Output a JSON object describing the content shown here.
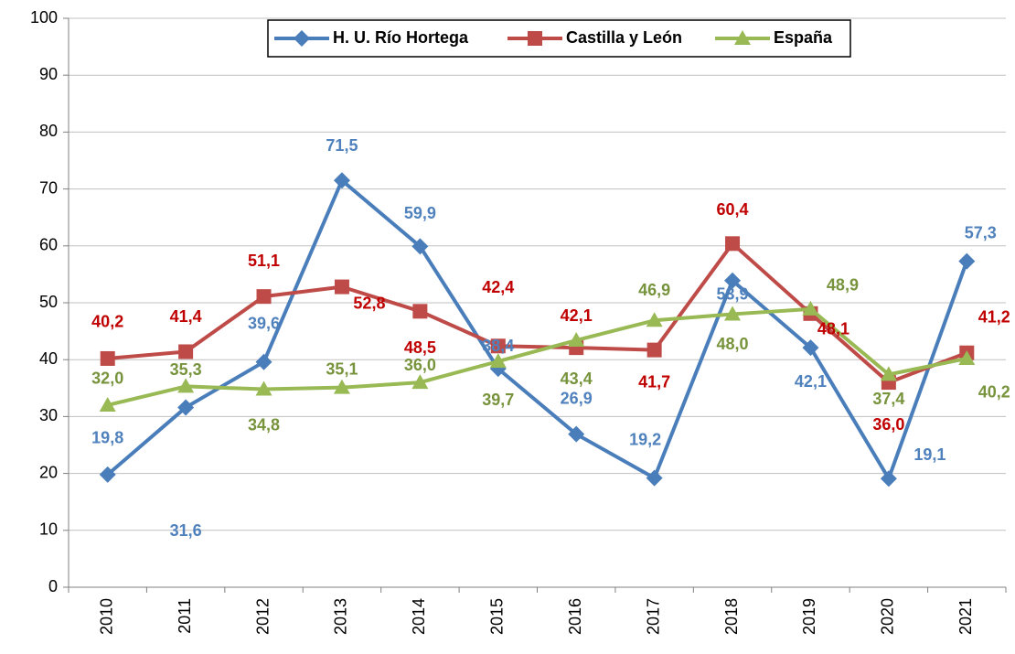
{
  "chart_data": {
    "type": "line",
    "categories": [
      "2010",
      "2011",
      "2012",
      "2013",
      "2014",
      "2015",
      "2016",
      "2017",
      "2018",
      "2019",
      "2020",
      "2021"
    ],
    "series": [
      {
        "name": "H. U. Río Hortega",
        "color": "#4a7ebb",
        "marker": "diamond",
        "values": [
          19.8,
          31.6,
          39.6,
          71.5,
          59.9,
          38.4,
          26.9,
          19.2,
          53.9,
          42.1,
          19.1,
          57.3
        ],
        "value_labels": [
          "19,8",
          "31,6",
          "39,6",
          "71,5",
          "59,9",
          "38,4",
          "26,9",
          "19,2",
          "53,9",
          "42,1",
          "19,1",
          "57,3"
        ]
      },
      {
        "name": "Castilla y León",
        "color": "#be4b48",
        "marker": "square",
        "values": [
          40.2,
          41.4,
          51.1,
          52.8,
          48.5,
          42.4,
          42.1,
          41.7,
          60.4,
          48.1,
          36.0,
          41.2
        ],
        "value_labels": [
          "40,2",
          "41,4",
          "51,1",
          "52,8",
          "48,5",
          "42,4",
          "42,1",
          "41,7",
          "60,4",
          "48,1",
          "36,0",
          "41,2"
        ]
      },
      {
        "name": "España",
        "color": "#98b954",
        "marker": "triangle",
        "values": [
          32.0,
          35.3,
          34.8,
          35.1,
          36.0,
          39.7,
          43.4,
          46.9,
          48.0,
          48.9,
          37.4,
          40.2
        ],
        "value_labels": [
          "32,0",
          "35,3",
          "34,8",
          "35,1",
          "36,0",
          "39,7",
          "43,4",
          "46,9",
          "48,0",
          "48,9",
          "37,4",
          "40,2"
        ]
      }
    ],
    "ylim": [
      0,
      100
    ],
    "yticks": [
      0,
      10,
      20,
      30,
      40,
      50,
      60,
      70,
      80,
      90,
      100
    ],
    "grid": true,
    "legend": "top"
  }
}
